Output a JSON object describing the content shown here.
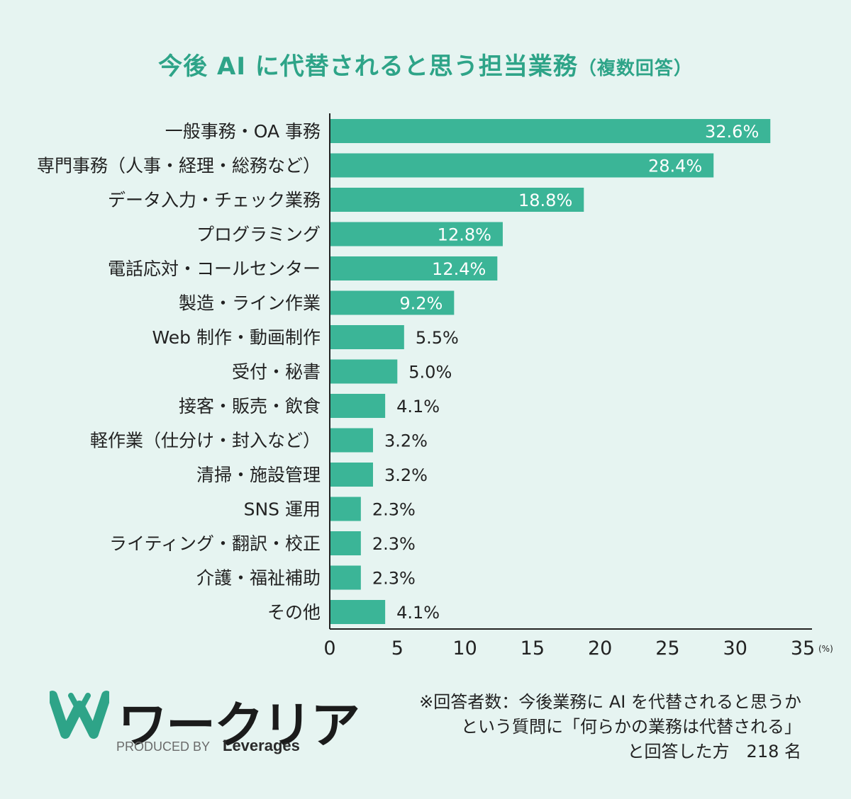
{
  "title": {
    "main": "今後 AI に代替されると思う担当業務",
    "sub": "（複数回答）"
  },
  "chart_data": {
    "type": "bar",
    "orientation": "horizontal",
    "categories": [
      "一般事務・OA 事務",
      "専門事務（人事・経理・総務など）",
      "データ入力・チェック業務",
      "プログラミング",
      "電話応対・コールセンター",
      "製造・ライン作業",
      "Web 制作・動画制作",
      "受付・秘書",
      "接客・販売・飲食",
      "軽作業（仕分け・封入など）",
      "清掃・施設管理",
      "SNS 運用",
      "ライティング・翻訳・校正",
      "介護・福祉補助",
      "その他"
    ],
    "values": [
      32.6,
      28.4,
      18.8,
      12.8,
      12.4,
      9.2,
      5.5,
      5.0,
      4.1,
      3.2,
      3.2,
      2.3,
      2.3,
      2.3,
      4.1
    ],
    "value_labels": [
      "32.6%",
      "28.4%",
      "18.8%",
      "12.8%",
      "12.4%",
      "9.2%",
      "5.5%",
      "5.0%",
      "4.1%",
      "3.2%",
      "3.2%",
      "2.3%",
      "2.3%",
      "2.3%",
      "4.1%"
    ],
    "xlim": [
      0,
      35
    ],
    "xticks": [
      0,
      5,
      10,
      15,
      20,
      25,
      30,
      35
    ],
    "xtick_labels": [
      "0",
      "5",
      "10",
      "15",
      "20",
      "25",
      "30",
      "35"
    ],
    "xunit": "(%)",
    "bar_color": "#3bb597",
    "grid": false
  },
  "logo": {
    "name": "ワークリア",
    "produced_by": "PRODUCED BY",
    "brand": "Leverages",
    "color": "#2ea488"
  },
  "note": {
    "line1": "※回答者数：今後業務に AI を代替されると思うか",
    "line2": "という質問に「何らかの業務は代替される」",
    "line3": "と回答した方　218 名"
  }
}
